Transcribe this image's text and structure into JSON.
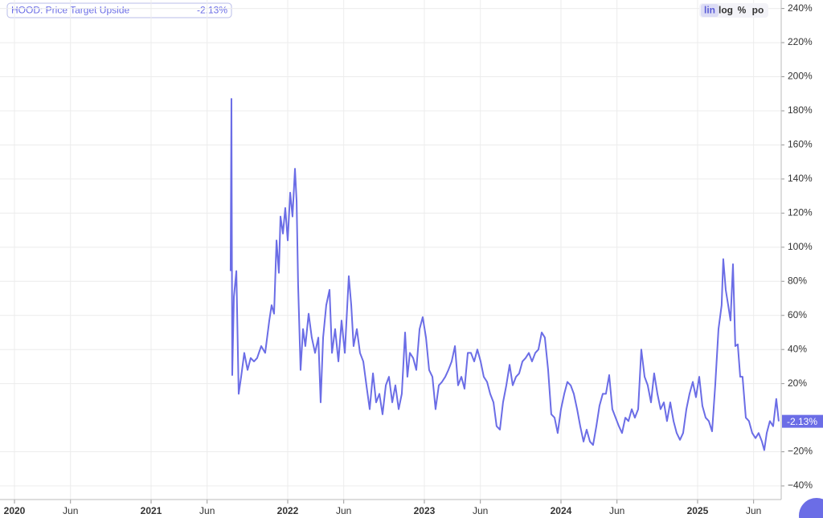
{
  "chart_data": {
    "type": "line",
    "controls": [
      "lin",
      "log",
      "%",
      "po"
    ],
    "active_control": 0,
    "log_scale": false,
    "grid": true,
    "x": [
      2021.582,
      2021.588,
      2021.594,
      2021.606,
      2021.624,
      2021.641,
      2021.659,
      2021.682,
      2021.706,
      2021.729,
      2021.753,
      2021.776,
      2021.806,
      2021.835,
      2021.865,
      2021.882,
      2021.9,
      2021.918,
      2021.935,
      2021.947,
      2021.965,
      2021.982,
      2022.0,
      2022.018,
      2022.035,
      2022.053,
      2022.065,
      2022.076,
      2022.094,
      2022.112,
      2022.129,
      2022.153,
      2022.176,
      2022.2,
      2022.224,
      2022.241,
      2022.259,
      2022.282,
      2022.306,
      2022.324,
      2022.347,
      2022.371,
      2022.394,
      2022.418,
      2022.447,
      2022.465,
      2022.482,
      2022.506,
      2022.529,
      2022.553,
      2022.576,
      2022.6,
      2022.624,
      2022.647,
      2022.671,
      2022.694,
      2022.718,
      2022.741,
      2022.765,
      2022.788,
      2022.812,
      2022.835,
      2022.859,
      2022.876,
      2022.894,
      2022.918,
      2022.941,
      2022.965,
      2022.988,
      2023.012,
      2023.035,
      2023.059,
      2023.082,
      2023.106,
      2023.129,
      2023.153,
      2023.176,
      2023.2,
      2023.224,
      2023.247,
      2023.271,
      2023.294,
      2023.318,
      2023.341,
      2023.365,
      2023.388,
      2023.412,
      2023.435,
      2023.459,
      2023.482,
      2023.506,
      2023.529,
      2023.553,
      2023.576,
      2023.6,
      2023.624,
      2023.647,
      2023.671,
      2023.694,
      2023.718,
      2023.741,
      2023.765,
      2023.788,
      2023.812,
      2023.835,
      2023.859,
      2023.882,
      2023.906,
      2023.929,
      2023.953,
      2023.976,
      2024.0,
      2024.024,
      2024.047,
      2024.071,
      2024.094,
      2024.118,
      2024.141,
      2024.165,
      2024.188,
      2024.212,
      2024.235,
      2024.259,
      2024.282,
      2024.306,
      2024.329,
      2024.353,
      2024.376,
      2024.4,
      2024.424,
      2024.447,
      2024.471,
      2024.494,
      2024.518,
      2024.541,
      2024.565,
      2024.588,
      2024.612,
      2024.635,
      2024.659,
      2024.682,
      2024.706,
      2024.729,
      2024.753,
      2024.776,
      2024.8,
      2024.824,
      2024.847,
      2024.871,
      2024.894,
      2024.918,
      2024.941,
      2024.965,
      2024.988,
      2025.012,
      2025.035,
      2025.059,
      2025.082,
      2025.106,
      2025.129,
      2025.153,
      2025.176,
      2025.188,
      2025.206,
      2025.224,
      2025.241,
      2025.259,
      2025.276,
      2025.294,
      2025.312,
      2025.329,
      2025.353,
      2025.376,
      2025.4,
      2025.424,
      2025.447,
      2025.471,
      2025.488,
      2025.506,
      2025.529,
      2025.553,
      2025.576,
      2025.594
    ],
    "series": [
      {
        "name": "HOOD: Price Target Upside",
        "color": "#6b6de6",
        "last_label": "-2.13%",
        "values": [
          86,
          187,
          25,
          71,
          86,
          14,
          24,
          38,
          28,
          35,
          33,
          35,
          42,
          38,
          57,
          66,
          61,
          104,
          85,
          118,
          108,
          123,
          104,
          132,
          118,
          146,
          127,
          78,
          28,
          52,
          42,
          61,
          47,
          38,
          47,
          9,
          47,
          66,
          75,
          38,
          52,
          33,
          57,
          38,
          83,
          66,
          42,
          52,
          38,
          33,
          19,
          5,
          26,
          9,
          14,
          2,
          19,
          24,
          9,
          19,
          5,
          14,
          50,
          24,
          38,
          35,
          28,
          52,
          59,
          47,
          28,
          24,
          5,
          19,
          21,
          24,
          28,
          33,
          42,
          19,
          24,
          17,
          38,
          38,
          33,
          40,
          33,
          24,
          21,
          14,
          9,
          -5,
          -7,
          9,
          19,
          31,
          19,
          24,
          26,
          33,
          35,
          38,
          33,
          38,
          40,
          50,
          47,
          28,
          2,
          0,
          -9,
          5,
          14,
          21,
          19,
          14,
          5,
          -5,
          -14,
          -7,
          -14,
          -16,
          -5,
          7,
          14,
          14,
          25,
          5,
          0,
          -5,
          -9,
          0,
          -2,
          5,
          0,
          5,
          40,
          24,
          19,
          9,
          26,
          14,
          5,
          9,
          -2,
          9,
          -2,
          -9,
          -13,
          -9,
          5,
          14,
          21,
          12,
          24,
          7,
          0,
          -2,
          -8,
          19,
          52,
          66,
          93,
          75,
          66,
          57,
          90,
          42,
          43,
          24,
          24,
          0,
          -2,
          -9,
          -12,
          -9,
          -14,
          -19,
          -9,
          -2,
          -5,
          11,
          -2.13
        ]
      }
    ],
    "xlim": [
      2019.894,
      2025.612
    ],
    "xticks": [
      2020,
      {
        "value": 2020.41,
        "label": "Jun"
      },
      2021,
      {
        "value": 2021.41,
        "label": "Jun"
      },
      2022,
      {
        "value": 2022.41,
        "label": "Jun"
      },
      2023,
      {
        "value": 2023.41,
        "label": "Jun"
      },
      2024,
      {
        "value": 2024.41,
        "label": "Jun"
      },
      2025,
      {
        "value": 2025.41,
        "label": "Jun"
      }
    ],
    "ylim": [
      -48,
      245
    ],
    "yticks": [
      {
        "value": -40,
        "label": "−40%"
      },
      {
        "value": -20,
        "label": "−20%"
      },
      {
        "value": 20,
        "label": "20%"
      },
      {
        "value": 40,
        "label": "40%"
      },
      {
        "value": 60,
        "label": "60%"
      },
      {
        "value": 80,
        "label": "80%"
      },
      {
        "value": 100,
        "label": "100%"
      },
      {
        "value": 120,
        "label": "120%"
      },
      {
        "value": 140,
        "label": "140%"
      },
      {
        "value": 160,
        "label": "160%"
      },
      {
        "value": 180,
        "label": "180%"
      },
      {
        "value": 200,
        "label": "200%"
      },
      {
        "value": 220,
        "label": "220%"
      },
      {
        "value": 240,
        "label": "240%"
      }
    ]
  }
}
